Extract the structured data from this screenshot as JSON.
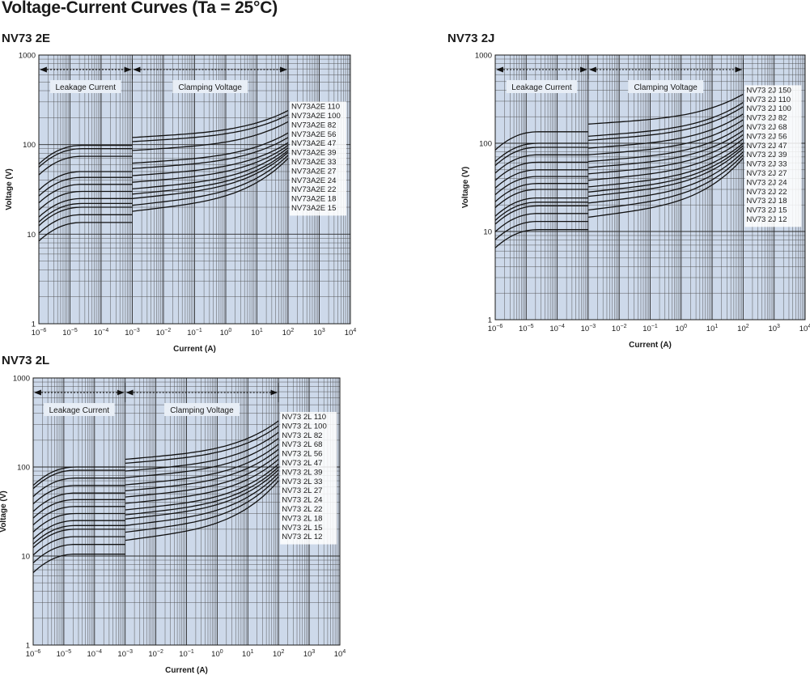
{
  "page": {
    "title": "Voltage-Current Curves (Ta = 25°C)"
  },
  "chart_data": [
    {
      "type": "line",
      "title": "NV73 2E",
      "xlabel": "Current (A)",
      "ylabel": "Voltage (V)",
      "xscale": "log",
      "yscale": "log",
      "xlim": [
        1e-06,
        10000.0
      ],
      "ylim": [
        1,
        1000
      ],
      "xtick_exponents": [
        -6,
        -5,
        -4,
        -3,
        -2,
        -1,
        0,
        1,
        2,
        3,
        4
      ],
      "ytick_labels": [
        "1",
        "10",
        "100",
        "1000"
      ],
      "grid": true,
      "regions": [
        {
          "label": "Leakage Current",
          "range": [
            1e-06,
            0.001
          ]
        },
        {
          "label": "Clamping Voltage",
          "range": [
            0.001,
            100
          ]
        }
      ],
      "series": [
        {
          "name": "NV73A2E 110",
          "leak_v": 98,
          "clamp_start_v": 120,
          "clamp_end_v": 240
        },
        {
          "name": "NV73A2E 100",
          "leak_v": 90,
          "clamp_start_v": 108,
          "clamp_end_v": 215
        },
        {
          "name": "NV73A2E 82",
          "leak_v": 74,
          "clamp_start_v": 86,
          "clamp_end_v": 180
        },
        {
          "name": "NV73A2E 56",
          "leak_v": 50,
          "clamp_start_v": 62,
          "clamp_end_v": 135
        },
        {
          "name": "NV73A2E 47",
          "leak_v": 43,
          "clamp_start_v": 54,
          "clamp_end_v": 120
        },
        {
          "name": "NV73A2E 39",
          "leak_v": 36,
          "clamp_start_v": 45,
          "clamp_end_v": 105
        },
        {
          "name": "NV73A2E 33",
          "leak_v": 30,
          "clamp_start_v": 38,
          "clamp_end_v": 98
        },
        {
          "name": "NV73A2E 27",
          "leak_v": 25,
          "clamp_start_v": 32,
          "clamp_end_v": 92
        },
        {
          "name": "NV73A2E 24",
          "leak_v": 22,
          "clamp_start_v": 28,
          "clamp_end_v": 86
        },
        {
          "name": "NV73A2E 22",
          "leak_v": 20,
          "clamp_start_v": 25,
          "clamp_end_v": 82
        },
        {
          "name": "NV73A2E 18",
          "leak_v": 16.5,
          "clamp_start_v": 21,
          "clamp_end_v": 76
        },
        {
          "name": "NV73A2E 15",
          "leak_v": 13.5,
          "clamp_start_v": 18,
          "clamp_end_v": 70
        }
      ]
    },
    {
      "type": "line",
      "title": "NV73 2J",
      "xlabel": "Current (A)",
      "ylabel": "Voltage (V)",
      "xscale": "log",
      "yscale": "log",
      "xlim": [
        1e-06,
        10000.0
      ],
      "ylim": [
        1,
        1000
      ],
      "xtick_exponents": [
        -6,
        -5,
        -4,
        -3,
        -2,
        -1,
        0,
        1,
        2,
        3,
        4
      ],
      "ytick_labels": [
        "1",
        "10",
        "100",
        "1000"
      ],
      "grid": true,
      "regions": [
        {
          "label": "Leakage Current",
          "range": [
            1e-06,
            0.001
          ]
        },
        {
          "label": "Clamping Voltage",
          "range": [
            0.001,
            100
          ]
        }
      ],
      "series": [
        {
          "name": "NV73 2J 150",
          "leak_v": 135,
          "clamp_start_v": 165,
          "clamp_end_v": 360
        },
        {
          "name": "NV73 2J 110",
          "leak_v": 100,
          "clamp_start_v": 120,
          "clamp_end_v": 290
        },
        {
          "name": "NV73 2J 100",
          "leak_v": 90,
          "clamp_start_v": 108,
          "clamp_end_v": 260
        },
        {
          "name": "NV73 2J 82",
          "leak_v": 74,
          "clamp_start_v": 88,
          "clamp_end_v": 215
        },
        {
          "name": "NV73 2J 68",
          "leak_v": 61,
          "clamp_start_v": 74,
          "clamp_end_v": 185
        },
        {
          "name": "NV73 2J 56",
          "leak_v": 50,
          "clamp_start_v": 62,
          "clamp_end_v": 160
        },
        {
          "name": "NV73 2J 47",
          "leak_v": 42,
          "clamp_start_v": 53,
          "clamp_end_v": 140
        },
        {
          "name": "NV73 2J 39",
          "leak_v": 35,
          "clamp_start_v": 45,
          "clamp_end_v": 125
        },
        {
          "name": "NV73 2J 33",
          "leak_v": 30,
          "clamp_start_v": 38,
          "clamp_end_v": 112
        },
        {
          "name": "NV73 2J 27",
          "leak_v": 24,
          "clamp_start_v": 32,
          "clamp_end_v": 100
        },
        {
          "name": "NV73 2J 24",
          "leak_v": 21.5,
          "clamp_start_v": 28,
          "clamp_end_v": 94
        },
        {
          "name": "NV73 2J 22",
          "leak_v": 19.5,
          "clamp_start_v": 25,
          "clamp_end_v": 88
        },
        {
          "name": "NV73 2J 18",
          "leak_v": 16,
          "clamp_start_v": 21,
          "clamp_end_v": 80
        },
        {
          "name": "NV73 2J 15",
          "leak_v": 13,
          "clamp_start_v": 17.5,
          "clamp_end_v": 74
        },
        {
          "name": "NV73 2J 12",
          "leak_v": 10.5,
          "clamp_start_v": 14.5,
          "clamp_end_v": 68
        }
      ]
    },
    {
      "type": "line",
      "title": "NV73 2L",
      "xlabel": "Current (A)",
      "ylabel": "Voltage (V)",
      "xscale": "log",
      "yscale": "log",
      "xlim": [
        1e-06,
        10000.0
      ],
      "ylim": [
        1,
        1000
      ],
      "xtick_exponents": [
        -6,
        -5,
        -4,
        -3,
        -2,
        -1,
        0,
        1,
        2,
        3,
        4
      ],
      "ytick_labels": [
        "1",
        "10",
        "100",
        "1000"
      ],
      "grid": true,
      "regions": [
        {
          "label": "Leakage Current",
          "range": [
            1e-06,
            0.001
          ]
        },
        {
          "label": "Clamping Voltage",
          "range": [
            0.001,
            100
          ]
        }
      ],
      "series": [
        {
          "name": "NV73 2L 110",
          "leak_v": 100,
          "clamp_start_v": 122,
          "clamp_end_v": 330
        },
        {
          "name": "NV73 2L 100",
          "leak_v": 92,
          "clamp_start_v": 110,
          "clamp_end_v": 290
        },
        {
          "name": "NV73 2L 82",
          "leak_v": 75,
          "clamp_start_v": 90,
          "clamp_end_v": 245
        },
        {
          "name": "NV73 2L 68",
          "leak_v": 62,
          "clamp_start_v": 76,
          "clamp_end_v": 210
        },
        {
          "name": "NV73 2L 56",
          "leak_v": 51,
          "clamp_start_v": 63,
          "clamp_end_v": 180
        },
        {
          "name": "NV73 2L 47",
          "leak_v": 43,
          "clamp_start_v": 54,
          "clamp_end_v": 158
        },
        {
          "name": "NV73 2L 39",
          "leak_v": 36,
          "clamp_start_v": 46,
          "clamp_end_v": 138
        },
        {
          "name": "NV73 2L 33",
          "leak_v": 30,
          "clamp_start_v": 39,
          "clamp_end_v": 122
        },
        {
          "name": "NV73 2L 27",
          "leak_v": 25,
          "clamp_start_v": 33,
          "clamp_end_v": 108
        },
        {
          "name": "NV73 2L 24",
          "leak_v": 22,
          "clamp_start_v": 29,
          "clamp_end_v": 100
        },
        {
          "name": "NV73 2L 22",
          "leak_v": 20,
          "clamp_start_v": 26,
          "clamp_end_v": 93
        },
        {
          "name": "NV73 2L 18",
          "leak_v": 16.5,
          "clamp_start_v": 22,
          "clamp_end_v": 85
        },
        {
          "name": "NV73 2L 15",
          "leak_v": 13.5,
          "clamp_start_v": 18.5,
          "clamp_end_v": 78
        },
        {
          "name": "NV73 2L 12",
          "leak_v": 10.5,
          "clamp_start_v": 15,
          "clamp_end_v": 70
        }
      ]
    }
  ]
}
